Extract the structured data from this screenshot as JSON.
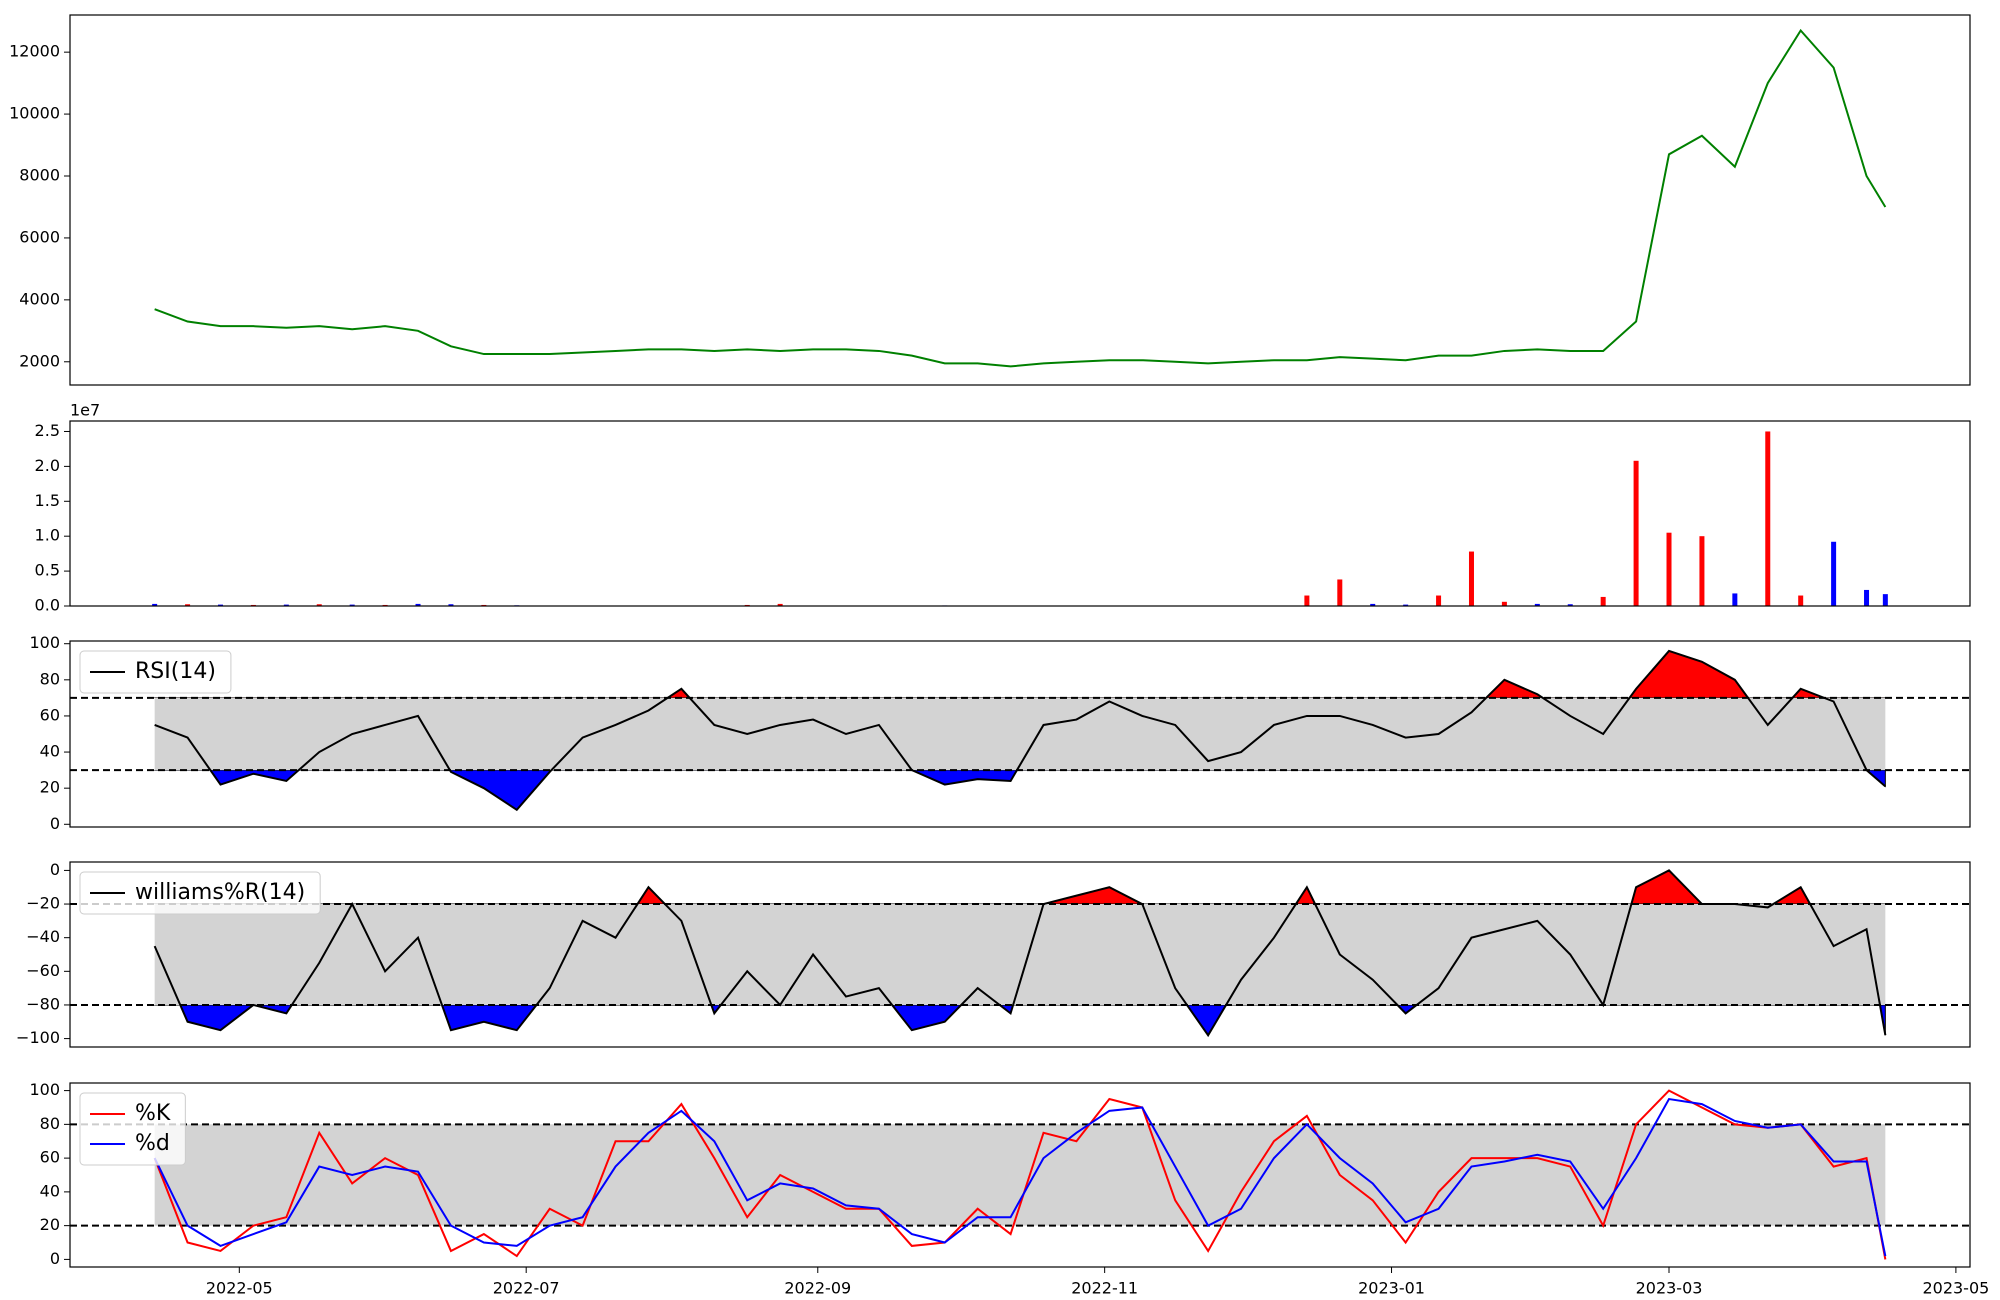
{
  "chart_data": [
    {
      "type": "line",
      "x": [
        "2022-04-13",
        "2022-04-20",
        "2022-04-27",
        "2022-05-04",
        "2022-05-11",
        "2022-05-18",
        "2022-05-25",
        "2022-06-01",
        "2022-06-08",
        "2022-06-15",
        "2022-06-22",
        "2022-06-29",
        "2022-07-06",
        "2022-07-13",
        "2022-07-20",
        "2022-07-27",
        "2022-08-03",
        "2022-08-10",
        "2022-08-17",
        "2022-08-24",
        "2022-08-31",
        "2022-09-07",
        "2022-09-14",
        "2022-09-21",
        "2022-09-28",
        "2022-10-05",
        "2022-10-12",
        "2022-10-19",
        "2022-10-26",
        "2022-11-02",
        "2022-11-09",
        "2022-11-16",
        "2022-11-23",
        "2022-11-30",
        "2022-12-07",
        "2022-12-14",
        "2022-12-21",
        "2022-12-28",
        "2023-01-04",
        "2023-01-11",
        "2023-01-18",
        "2023-01-25",
        "2023-02-01",
        "2023-02-08",
        "2023-02-15",
        "2023-02-22",
        "2023-03-01",
        "2023-03-08",
        "2023-03-15",
        "2023-03-22",
        "2023-03-29",
        "2023-04-05",
        "2023-04-12",
        "2023-04-16"
      ],
      "series": [
        {
          "color": "#008000",
          "values": [
            3700,
            3300,
            3150,
            3150,
            3100,
            3150,
            3050,
            3150,
            3000,
            2500,
            2250,
            2250,
            2250,
            2300,
            2350,
            2400,
            2400,
            2350,
            2400,
            2350,
            2400,
            2400,
            2350,
            2200,
            1950,
            1950,
            1850,
            1950,
            2000,
            2050,
            2050,
            2000,
            1950,
            2000,
            2050,
            2050,
            2150,
            2100,
            2050,
            2200,
            2200,
            2350,
            2400,
            2350,
            2350,
            3300,
            8700,
            9300,
            8300,
            11000,
            12700,
            11500,
            8000,
            7000
          ]
        }
      ],
      "xlim": [
        "2022-03-26",
        "2023-05-04"
      ],
      "ylim": [
        1250,
        13200
      ],
      "yticks": [
        2000,
        4000,
        6000,
        8000,
        10000,
        12000
      ]
    },
    {
      "type": "bar",
      "offset_label": "1e7",
      "x": [
        "2022-04-13",
        "2022-04-20",
        "2022-04-27",
        "2022-05-04",
        "2022-05-11",
        "2022-05-18",
        "2022-05-25",
        "2022-06-01",
        "2022-06-08",
        "2022-06-15",
        "2022-06-22",
        "2022-06-29",
        "2022-07-06",
        "2022-07-13",
        "2022-07-20",
        "2022-07-27",
        "2022-08-03",
        "2022-08-10",
        "2022-08-17",
        "2022-08-24",
        "2022-08-31",
        "2022-09-07",
        "2022-09-14",
        "2022-09-21",
        "2022-09-28",
        "2022-10-05",
        "2022-10-12",
        "2022-10-19",
        "2022-10-26",
        "2022-11-02",
        "2022-11-09",
        "2022-11-16",
        "2022-11-23",
        "2022-11-30",
        "2022-12-07",
        "2022-12-14",
        "2022-12-21",
        "2022-12-28",
        "2023-01-04",
        "2023-01-11",
        "2023-01-18",
        "2023-01-25",
        "2023-02-01",
        "2023-02-08",
        "2023-02-15",
        "2023-02-22",
        "2023-03-01",
        "2023-03-08",
        "2023-03-15",
        "2023-03-22",
        "2023-03-29",
        "2023-04-05",
        "2023-04-12",
        "2023-04-16"
      ],
      "values": [
        300000,
        250000,
        200000,
        150000,
        200000,
        250000,
        200000,
        150000,
        300000,
        250000,
        150000,
        100000,
        50000,
        30000,
        30000,
        30000,
        30000,
        30000,
        150000,
        300000,
        50000,
        30000,
        30000,
        30000,
        80000,
        30000,
        30000,
        30000,
        30000,
        30000,
        50000,
        30000,
        30000,
        30000,
        50000,
        1500000,
        3800000,
        300000,
        200000,
        1500000,
        7800000,
        600000,
        300000,
        250000,
        1300000,
        20800000,
        10500000,
        10000000,
        1800000,
        25000000,
        1500000,
        9200000,
        2300000,
        1700000
      ],
      "colors": [
        "blue",
        "red",
        "blue",
        "red",
        "blue",
        "red",
        "blue",
        "red",
        "blue",
        "blue",
        "red",
        "blue",
        "red",
        "blue",
        "red",
        "blue",
        "red",
        "blue",
        "red",
        "red",
        "blue",
        "red",
        "blue",
        "red",
        "blue",
        "red",
        "blue",
        "red",
        "blue",
        "red",
        "blue",
        "red",
        "blue",
        "red",
        "blue",
        "red",
        "red",
        "blue",
        "blue",
        "red",
        "red",
        "red",
        "blue",
        "blue",
        "red",
        "red",
        "red",
        "red",
        "blue",
        "red",
        "red",
        "blue",
        "blue",
        "blue"
      ],
      "xlim": [
        "2022-03-26",
        "2023-05-04"
      ],
      "ylim": [
        0,
        26500000
      ],
      "yticks": [
        {
          "value": 0,
          "label": "0.0"
        },
        {
          "value": 5000000,
          "label": "0.5"
        },
        {
          "value": 10000000,
          "label": "1.0"
        },
        {
          "value": 15000000,
          "label": "1.5"
        },
        {
          "value": 20000000,
          "label": "2.0"
        },
        {
          "value": 25000000,
          "label": "2.5"
        }
      ]
    },
    {
      "type": "line",
      "legend": "upper left",
      "x": [
        "2022-04-13",
        "2022-04-20",
        "2022-04-27",
        "2022-05-04",
        "2022-05-11",
        "2022-05-18",
        "2022-05-25",
        "2022-06-01",
        "2022-06-08",
        "2022-06-15",
        "2022-06-22",
        "2022-06-29",
        "2022-07-06",
        "2022-07-13",
        "2022-07-20",
        "2022-07-27",
        "2022-08-03",
        "2022-08-10",
        "2022-08-17",
        "2022-08-24",
        "2022-08-31",
        "2022-09-07",
        "2022-09-14",
        "2022-09-21",
        "2022-09-28",
        "2022-10-05",
        "2022-10-12",
        "2022-10-19",
        "2022-10-26",
        "2022-11-02",
        "2022-11-09",
        "2022-11-16",
        "2022-11-23",
        "2022-11-30",
        "2022-12-07",
        "2022-12-14",
        "2022-12-21",
        "2022-12-28",
        "2023-01-04",
        "2023-01-11",
        "2023-01-18",
        "2023-01-25",
        "2023-02-01",
        "2023-02-08",
        "2023-02-15",
        "2023-02-22",
        "2023-03-01",
        "2023-03-08",
        "2023-03-15",
        "2023-03-22",
        "2023-03-29",
        "2023-04-05",
        "2023-04-12",
        "2023-04-16"
      ],
      "series": [
        {
          "name": "RSI(14)",
          "color": "black",
          "values": [
            55,
            48,
            22,
            28,
            24,
            40,
            50,
            55,
            60,
            29,
            20,
            8,
            29,
            48,
            55,
            63,
            75,
            55,
            50,
            55,
            58,
            50,
            55,
            30,
            22,
            25,
            24,
            55,
            58,
            68,
            60,
            55,
            35,
            40,
            55,
            60,
            60,
            55,
            48,
            50,
            62,
            80,
            72,
            60,
            50,
            75,
            96,
            90,
            80,
            55,
            75,
            68,
            30,
            21
          ]
        }
      ],
      "lower": 30,
      "upper": 70,
      "band_color": "#d3d3d3",
      "above_color": "red",
      "below_color": "blue",
      "xlim": [
        "2022-03-26",
        "2023-05-04"
      ],
      "ylim": [
        -1.5,
        101.5
      ],
      "yticks": [
        0,
        20,
        40,
        60,
        80,
        100
      ]
    },
    {
      "type": "line",
      "legend": "upper left",
      "x": [
        "2022-04-13",
        "2022-04-20",
        "2022-04-27",
        "2022-05-04",
        "2022-05-11",
        "2022-05-18",
        "2022-05-25",
        "2022-06-01",
        "2022-06-08",
        "2022-06-15",
        "2022-06-22",
        "2022-06-29",
        "2022-07-06",
        "2022-07-13",
        "2022-07-20",
        "2022-07-27",
        "2022-08-03",
        "2022-08-10",
        "2022-08-17",
        "2022-08-24",
        "2022-08-31",
        "2022-09-07",
        "2022-09-14",
        "2022-09-21",
        "2022-09-28",
        "2022-10-05",
        "2022-10-12",
        "2022-10-19",
        "2022-10-26",
        "2022-11-02",
        "2022-11-09",
        "2022-11-16",
        "2022-11-23",
        "2022-11-30",
        "2022-12-07",
        "2022-12-14",
        "2022-12-21",
        "2022-12-28",
        "2023-01-04",
        "2023-01-11",
        "2023-01-18",
        "2023-01-25",
        "2023-02-01",
        "2023-02-08",
        "2023-02-15",
        "2023-02-22",
        "2023-03-01",
        "2023-03-08",
        "2023-03-15",
        "2023-03-22",
        "2023-03-29",
        "2023-04-05",
        "2023-04-12",
        "2023-04-16"
      ],
      "series": [
        {
          "name": "williams%R(14)",
          "color": "black",
          "values": [
            -45,
            -90,
            -95,
            -80,
            -85,
            -55,
            -20,
            -60,
            -40,
            -95,
            -90,
            -95,
            -70,
            -30,
            -40,
            -10,
            -30,
            -85,
            -60,
            -80,
            -50,
            -75,
            -70,
            -95,
            -90,
            -70,
            -85,
            -20,
            -15,
            -10,
            -20,
            -70,
            -98,
            -65,
            -40,
            -10,
            -50,
            -65,
            -85,
            -70,
            -40,
            -35,
            -30,
            -50,
            -80,
            -10,
            0,
            -20,
            -20,
            -22,
            -10,
            -45,
            -35,
            -98
          ]
        }
      ],
      "lower": -80,
      "upper": -20,
      "band_color": "#d3d3d3",
      "above_color": "red",
      "below_color": "blue",
      "xlim": [
        "2022-03-26",
        "2023-05-04"
      ],
      "ylim": [
        -105,
        5
      ],
      "yticks": [
        {
          "value": -100,
          "label": "−100"
        },
        {
          "value": -80,
          "label": "−80"
        },
        {
          "value": -60,
          "label": "−60"
        },
        {
          "value": -40,
          "label": "−40"
        },
        {
          "value": -20,
          "label": "−20"
        },
        0
      ]
    },
    {
      "type": "line",
      "legend": "upper left",
      "x": [
        "2022-04-13",
        "2022-04-20",
        "2022-04-27",
        "2022-05-04",
        "2022-05-11",
        "2022-05-18",
        "2022-05-25",
        "2022-06-01",
        "2022-06-08",
        "2022-06-15",
        "2022-06-22",
        "2022-06-29",
        "2022-07-06",
        "2022-07-13",
        "2022-07-20",
        "2022-07-27",
        "2022-08-03",
        "2022-08-10",
        "2022-08-17",
        "2022-08-24",
        "2022-08-31",
        "2022-09-07",
        "2022-09-14",
        "2022-09-21",
        "2022-09-28",
        "2022-10-05",
        "2022-10-12",
        "2022-10-19",
        "2022-10-26",
        "2022-11-02",
        "2022-11-09",
        "2022-11-16",
        "2022-11-23",
        "2022-11-30",
        "2022-12-07",
        "2022-12-14",
        "2022-12-21",
        "2022-12-28",
        "2023-01-04",
        "2023-01-11",
        "2023-01-18",
        "2023-01-25",
        "2023-02-01",
        "2023-02-08",
        "2023-02-15",
        "2023-02-22",
        "2023-03-01",
        "2023-03-08",
        "2023-03-15",
        "2023-03-22",
        "2023-03-29",
        "2023-04-05",
        "2023-04-12",
        "2023-04-16"
      ],
      "series": [
        {
          "name": "%K",
          "color": "red",
          "values": [
            60,
            10,
            5,
            20,
            25,
            75,
            45,
            60,
            50,
            5,
            15,
            2,
            30,
            20,
            70,
            70,
            92,
            60,
            25,
            50,
            40,
            30,
            30,
            8,
            10,
            30,
            15,
            75,
            70,
            95,
            90,
            35,
            5,
            40,
            70,
            85,
            50,
            35,
            10,
            40,
            60,
            60,
            60,
            55,
            20,
            80,
            100,
            90,
            80,
            78,
            80,
            55,
            60,
            0
          ]
        },
        {
          "name": "%d",
          "color": "blue",
          "values": [
            60,
            20,
            8,
            15,
            22,
            55,
            50,
            55,
            52,
            20,
            10,
            8,
            20,
            25,
            55,
            75,
            88,
            70,
            35,
            45,
            42,
            32,
            30,
            15,
            10,
            25,
            25,
            60,
            75,
            88,
            90,
            55,
            20,
            30,
            60,
            80,
            60,
            45,
            22,
            30,
            55,
            58,
            62,
            58,
            30,
            60,
            95,
            92,
            82,
            78,
            80,
            58,
            58,
            2
          ]
        }
      ],
      "lower": 20,
      "upper": 80,
      "band_color": "#d3d3d3",
      "xlim": [
        "2022-03-26",
        "2023-05-04"
      ],
      "ylim": [
        -4.5,
        104.5
      ],
      "yticks": [
        0,
        20,
        40,
        60,
        80,
        100
      ],
      "xticks": [
        "2022-05",
        "2022-07",
        "2022-09",
        "2022-11",
        "2023-01",
        "2023-03",
        "2023-05"
      ]
    }
  ]
}
